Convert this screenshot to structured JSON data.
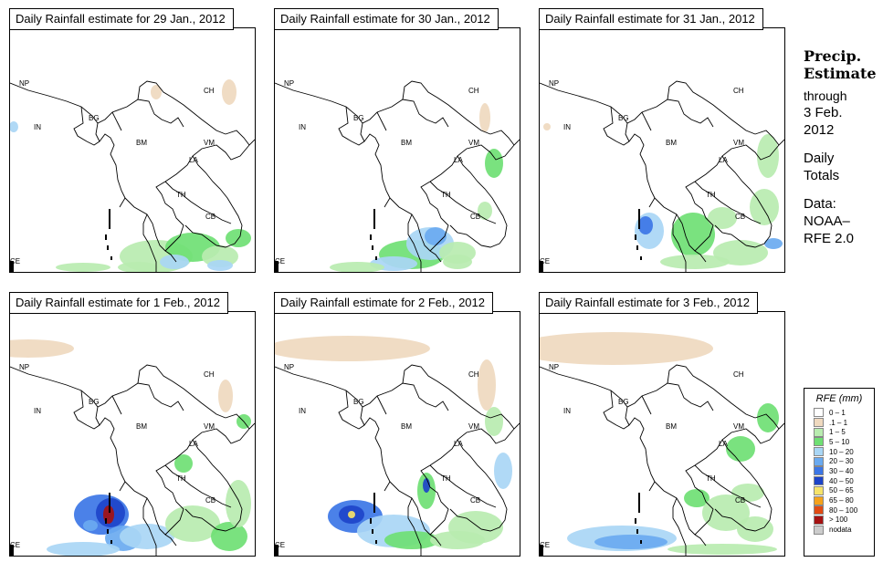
{
  "panels": [
    {
      "title": "Daily Rainfall estimate for  29 Jan., 2012",
      "key": "p1"
    },
    {
      "title": "Daily Rainfall estimate for  30 Jan., 2012",
      "key": "p2"
    },
    {
      "title": "Daily Rainfall estimate for  31 Jan., 2012",
      "key": "p3"
    },
    {
      "title": "Daily Rainfall estimate for  1 Feb., 2012",
      "key": "p4"
    },
    {
      "title": "Daily Rainfall estimate for  2 Feb., 2012",
      "key": "p5"
    },
    {
      "title": "Daily Rainfall estimate for  3 Feb., 2012",
      "key": "p6"
    }
  ],
  "region_labels": {
    "NP": "NP",
    "CH": "CH",
    "IN": "IN",
    "BG": "BG",
    "BM": "BM",
    "VM": "VM",
    "LA": "LA",
    "TH": "TH",
    "CB": "CB",
    "CE": "CE"
  },
  "side": {
    "title1": "Precip.",
    "title2": "Estimate",
    "through": "through",
    "date1": "3 Feb.",
    "date2": "2012",
    "daily1": "Daily",
    "daily2": "Totals",
    "data1": "Data:",
    "data2": "NOAA–",
    "data3": "RFE 2.0"
  },
  "legend": {
    "title": "RFE (mm)",
    "items": [
      {
        "label": "0 – 1",
        "color": "#ffffff"
      },
      {
        "label": ".1 – 1",
        "color": "#efd9bf"
      },
      {
        "label": "1 – 5",
        "color": "#b9ecb0"
      },
      {
        "label": "5 – 10",
        "color": "#6fdf74"
      },
      {
        "label": "10 – 20",
        "color": "#a9d6f5"
      },
      {
        "label": "20 – 30",
        "color": "#6aaaf0"
      },
      {
        "label": "30 – 40",
        "color": "#3c76e6"
      },
      {
        "label": "40 – 50",
        "color": "#1d44c9"
      },
      {
        "label": "50 – 65",
        "color": "#f6e36a"
      },
      {
        "label": "65 – 80",
        "color": "#f5a21b"
      },
      {
        "label": "80 – 100",
        "color": "#e14b13"
      },
      {
        "label": "> 100",
        "color": "#a51212"
      },
      {
        "label": "nodata",
        "color": "#cccccc"
      }
    ]
  }
}
